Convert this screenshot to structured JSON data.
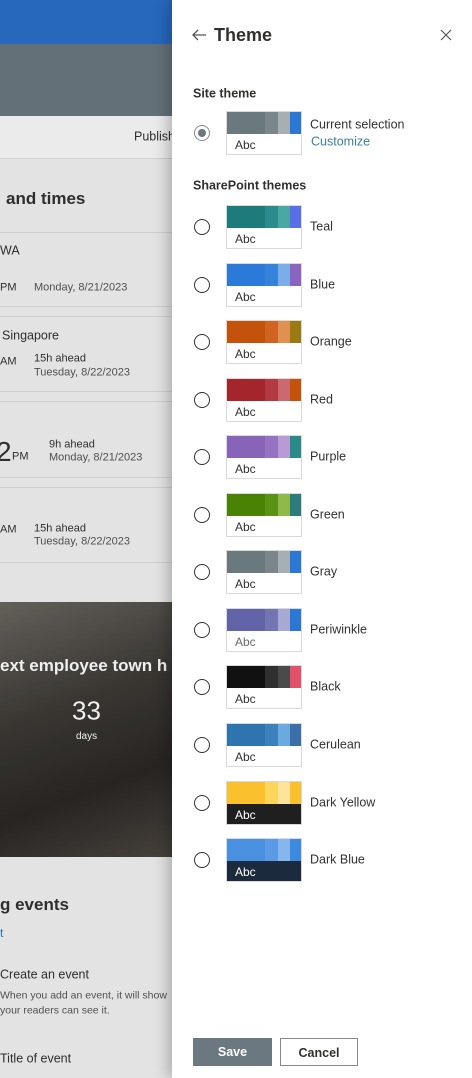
{
  "background": {
    "publish": "Publish",
    "heading": "and times",
    "clocks": [
      {
        "place": "WA",
        "period": "PM",
        "date": "Monday, 8/21/2023"
      },
      {
        "place": "Singapore",
        "period": "AM",
        "offset": "15h ahead",
        "date": "Tuesday, 8/22/2023"
      },
      {
        "time": "2",
        "period": "PM",
        "offset": "9h ahead",
        "date": "Monday, 8/21/2023"
      },
      {
        "period": "AM",
        "offset": "15h ahead",
        "date": "Tuesday, 8/22/2023"
      }
    ],
    "countdown": {
      "title": "ext employee town h",
      "number": "33",
      "unit": "days"
    },
    "events": {
      "heading": "g events",
      "link": "t",
      "items": [
        {
          "title": "Create an event",
          "description": [
            "When you add an event, it will show",
            "your readers can see it."
          ]
        },
        {
          "title": "Title of event"
        }
      ]
    }
  },
  "panel": {
    "title": "Theme",
    "site_theme_label": "Site theme",
    "current": {
      "name": "Current selection",
      "action": "Customize",
      "sample": "Abc",
      "colors": [
        "#69797e",
        "#7a868b",
        "#a6b0b4",
        "#2b78d4"
      ],
      "sample_bg": "#ffffff",
      "sample_color": "#323130"
    },
    "themes_label": "SharePoint themes",
    "themes": [
      {
        "name": "Teal",
        "sample": "Abc",
        "colors": [
          "#1e7b7c",
          "#2a8c8c",
          "#4aa8a4",
          "#5a6ee6"
        ],
        "sample_bg": "#ffffff",
        "sample_color": "#323130"
      },
      {
        "name": "Blue",
        "sample": "Abc",
        "colors": [
          "#2b7ad9",
          "#3482da",
          "#7aaee8",
          "#8a64c0"
        ],
        "sample_bg": "#ffffff",
        "sample_color": "#323130"
      },
      {
        "name": "Orange",
        "sample": "Abc",
        "colors": [
          "#c4520a",
          "#d0631f",
          "#e09050",
          "#9b7a10"
        ],
        "sample_bg": "#ffffff",
        "sample_color": "#323130"
      },
      {
        "name": "Red",
        "sample": "Abc",
        "colors": [
          "#a4262c",
          "#b33a40",
          "#ca6a6e",
          "#c4520a"
        ],
        "sample_bg": "#ffffff",
        "sample_color": "#323130"
      },
      {
        "name": "Purple",
        "sample": "Abc",
        "colors": [
          "#8764b8",
          "#9673c2",
          "#b79ad6",
          "#2a8a8a"
        ],
        "sample_bg": "#ffffff",
        "sample_color": "#323130"
      },
      {
        "name": "Green",
        "sample": "Abc",
        "colors": [
          "#498205",
          "#5a9216",
          "#8fba4a",
          "#2a7d7a"
        ],
        "sample_bg": "#ffffff",
        "sample_color": "#323130"
      },
      {
        "name": "Gray",
        "sample": "Abc",
        "colors": [
          "#69797e",
          "#7a868b",
          "#a6b0b4",
          "#2b78d4"
        ],
        "sample_bg": "#ffffff",
        "sample_color": "#323130"
      },
      {
        "name": "Periwinkle",
        "sample": "Abc",
        "colors": [
          "#6264a7",
          "#7375b3",
          "#a8a9d3",
          "#2b78d4"
        ],
        "sample_bg": "#ffffff",
        "sample_color": "#6b6b6b"
      },
      {
        "name": "Black",
        "sample": "Abc",
        "colors": [
          "#111111",
          "#303030",
          "#4a4a4a",
          "#e3506a"
        ],
        "sample_bg": "#ffffff",
        "sample_color": "#323130"
      },
      {
        "name": "Cerulean",
        "sample": "Abc",
        "colors": [
          "#2e74ae",
          "#3b82bd",
          "#6aaae0",
          "#3a6fa8"
        ],
        "sample_bg": "#ffffff",
        "sample_color": "#323130"
      },
      {
        "name": "Dark Yellow",
        "sample": "Abc",
        "colors": [
          "#fbc02d",
          "#fcd65a",
          "#fde49a",
          "#fbc02d"
        ],
        "sample_bg": "#1f1f1f",
        "sample_color": "#ffffff"
      },
      {
        "name": "Dark Blue",
        "sample": "Abc",
        "colors": [
          "#4a90e0",
          "#5a9ae6",
          "#86b6ee",
          "#3c8ae0"
        ],
        "sample_bg": "#1b2a3c",
        "sample_color": "#ffffff"
      }
    ],
    "buttons": {
      "save": "Save",
      "cancel": "Cancel"
    }
  }
}
